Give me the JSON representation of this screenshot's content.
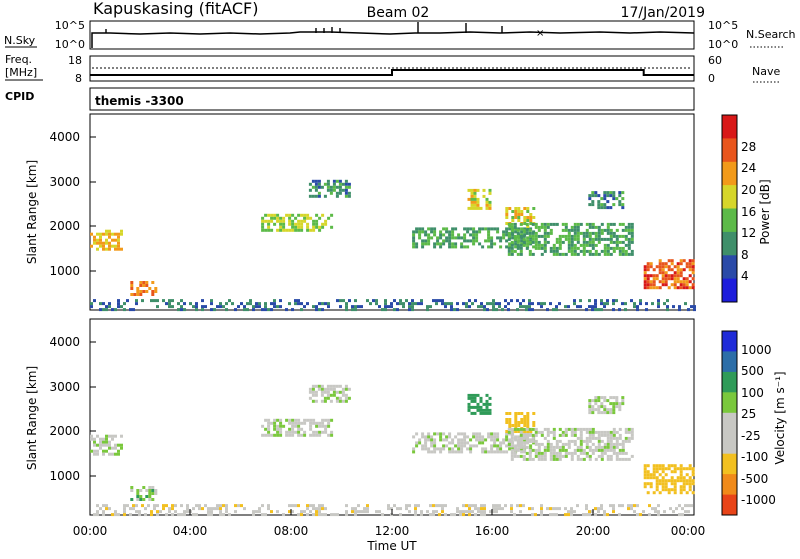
{
  "header": {
    "title_left": "Kapuskasing (fitACF)",
    "title_center": "Beam 02",
    "title_right": "17/Jan/2019"
  },
  "noise_panel": {
    "left_label": "N.Sky",
    "right_label": "N.Search",
    "left_ticks": [
      "10^5",
      "10^0"
    ],
    "right_ticks": [
      "10^5",
      "10^0"
    ]
  },
  "freq_panel": {
    "left_label_line1": "Freq.",
    "left_label_line2": "[MHz]",
    "right_label": "Nave",
    "left_ticks": [
      "18",
      "8"
    ],
    "right_ticks": [
      "60",
      "0"
    ],
    "freq_steps": [
      {
        "t": 0.0,
        "mhz": 10.4
      },
      {
        "t": 12.0,
        "mhz": 12.4
      },
      {
        "t": 22.0,
        "mhz": 10.4
      },
      {
        "t": 24.0,
        "mhz": 10.4
      }
    ],
    "nave_level": 28
  },
  "cpid": {
    "label": "CPID",
    "program": "themis -3300"
  },
  "power_panel": {
    "ylabel": "Slant Range [km]",
    "yticks": [
      "1000",
      "2000",
      "3000",
      "4000"
    ],
    "cbar_label": "Power [dB]",
    "cbar_ticks": [
      "4",
      "8",
      "12",
      "16",
      "20",
      "24",
      "28"
    ],
    "cbar_colors": [
      "#1d1ddb",
      "#2a4aa8",
      "#3f8f6a",
      "#5cba48",
      "#d6d62a",
      "#f29a1a",
      "#e8551c",
      "#d81818"
    ]
  },
  "velocity_panel": {
    "ylabel": "Slant Range [km]",
    "yticks": [
      "1000",
      "2000",
      "3000",
      "4000"
    ],
    "cbar_label": "Velocity [m s⁻¹]",
    "cbar_ticks": [
      "1000",
      "500",
      "100",
      "25",
      "-25",
      "-100",
      "-500",
      "-1000"
    ],
    "cbar_colors": [
      "#1f2bd8",
      "#2c6ea8",
      "#2f9b58",
      "#7ac83c",
      "#c8c8c4",
      "#c8c8c4",
      "#f2c020",
      "#f08a1a",
      "#e84418"
    ]
  },
  "xaxis": {
    "label": "Time UT",
    "ticks": [
      "00:00",
      "04:00",
      "08:00",
      "12:00",
      "16:00",
      "20:00",
      "00:00"
    ]
  },
  "chart_data": {
    "type": "heatmap",
    "title": "Kapuskasing (fitACF)",
    "xlabel": "Time UT",
    "ylabel": "Slant Range [km]",
    "xlim": [
      0,
      24
    ],
    "ylim": [
      180,
      4500
    ],
    "power_cbar": "Power [dB]",
    "velocity_cbar": "Velocity [m s⁻¹]",
    "echo_regions": [
      {
        "t0": 0.0,
        "t1": 1.2,
        "r0": 1500,
        "r1": 1950,
        "power": 20,
        "velocity": 10
      },
      {
        "t0": 1.6,
        "t1": 2.6,
        "r0": 520,
        "r1": 820,
        "power": 24,
        "velocity": 60
      },
      {
        "t0": 6.8,
        "t1": 9.6,
        "r0": 1950,
        "r1": 2300,
        "power": 16,
        "velocity": 0
      },
      {
        "t0": 8.7,
        "t1": 10.3,
        "r0": 2700,
        "r1": 3050,
        "power": 10,
        "velocity": 0
      },
      {
        "t0": 12.8,
        "t1": 17.6,
        "r0": 1600,
        "r1": 2000,
        "power": 12,
        "velocity": -10
      },
      {
        "t0": 15.0,
        "t1": 15.9,
        "r0": 2450,
        "r1": 2850,
        "power": 18,
        "velocity": 300
      },
      {
        "t0": 16.5,
        "t1": 17.6,
        "r0": 2050,
        "r1": 2450,
        "power": 18,
        "velocity": -250
      },
      {
        "t0": 16.6,
        "t1": 21.5,
        "r0": 1400,
        "r1": 2100,
        "power": 12,
        "velocity": -10
      },
      {
        "t0": 19.8,
        "t1": 21.2,
        "r0": 2450,
        "r1": 2800,
        "power": 10,
        "velocity": 0
      },
      {
        "t0": 22.0,
        "t1": 24.0,
        "r0": 700,
        "r1": 1300,
        "power": 26,
        "velocity": -200
      },
      {
        "t0": 0.0,
        "t1": 24.0,
        "r0": 180,
        "r1": 420,
        "power": 8,
        "velocity": -60
      }
    ]
  }
}
